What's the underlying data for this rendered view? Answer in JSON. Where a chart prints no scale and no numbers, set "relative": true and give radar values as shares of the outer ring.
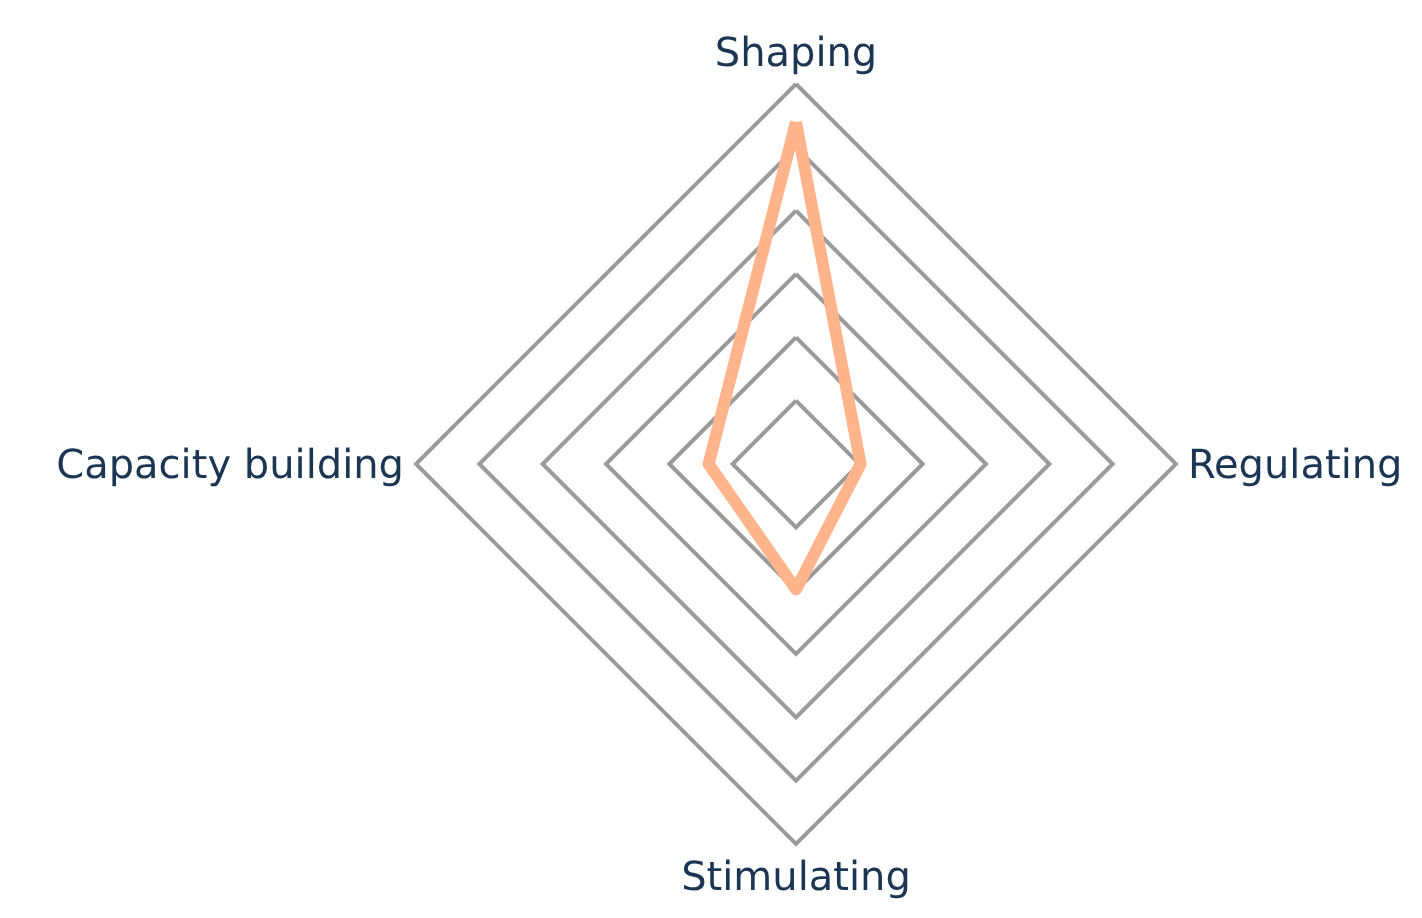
{
  "chart_data": {
    "type": "radar",
    "categories": [
      "Shaping",
      "Regulating",
      "Stimulating",
      "Capacity building"
    ],
    "relative": true,
    "marker": "none",
    "series": [
      {
        "color": "#ffb48c",
        "values": [
          0.9,
          0.17,
          0.33,
          0.23
        ]
      }
    ]
  }
}
